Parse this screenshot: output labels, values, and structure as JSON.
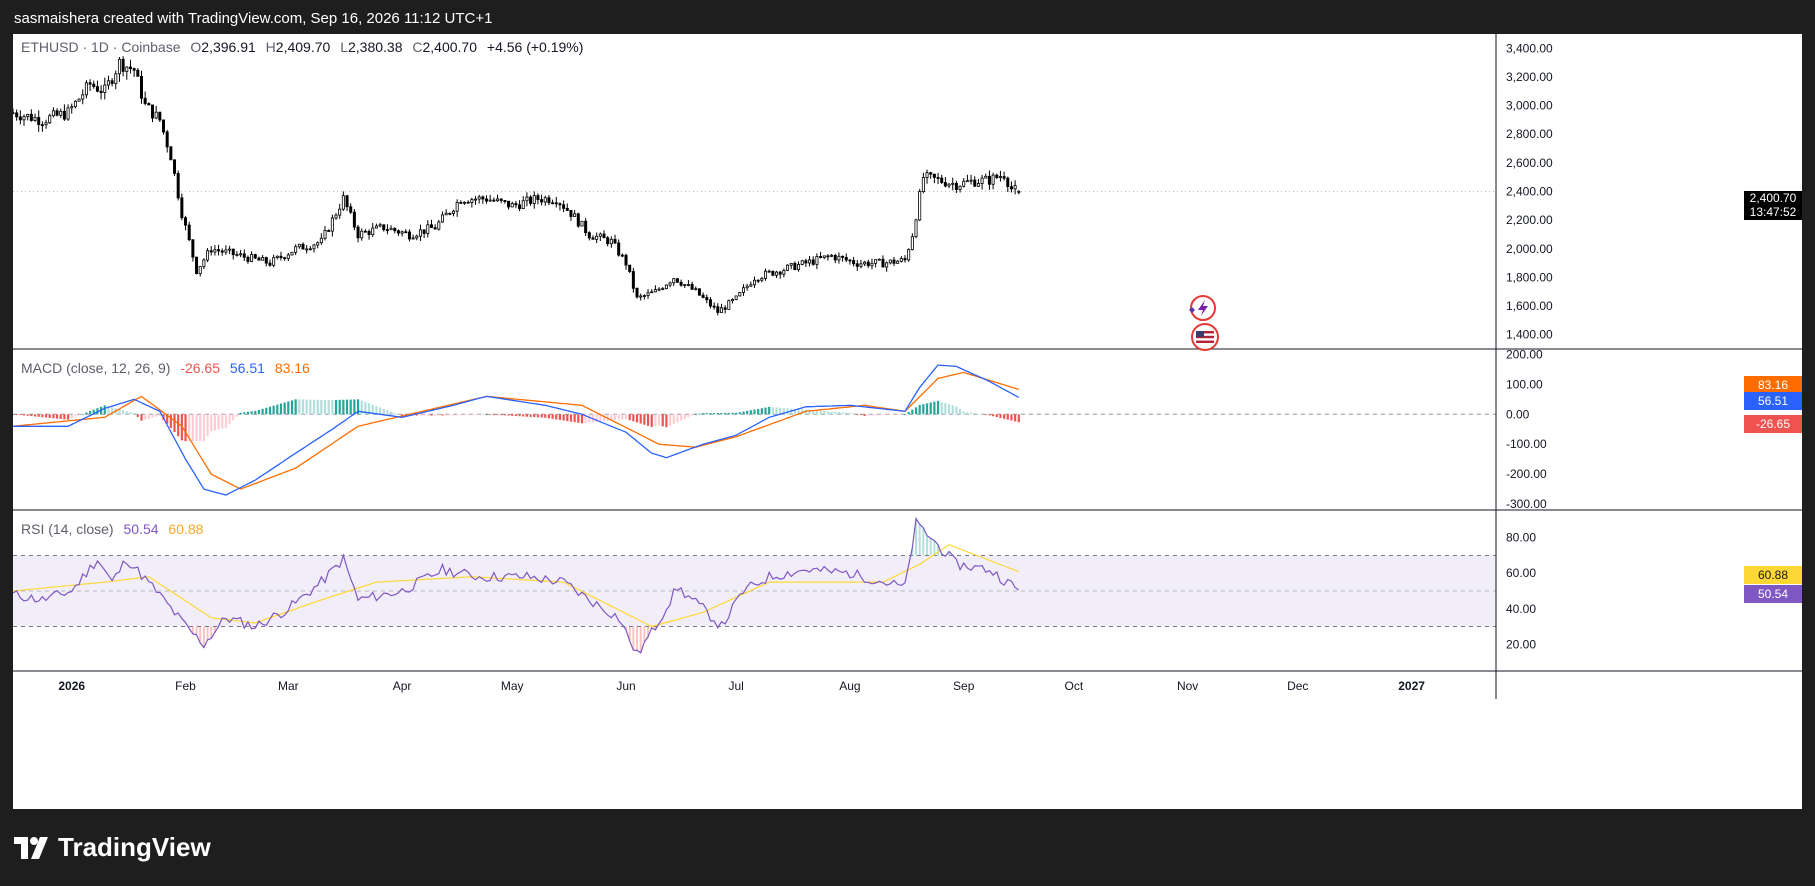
{
  "header": {
    "credit": "sasmaishera created with TradingView.com, Sep 16, 2026 11:12 UTC+1"
  },
  "footer": {
    "brand": "TradingView"
  },
  "legend": {
    "symbol": "ETHUSD · 1D · Coinbase",
    "o_label": "O",
    "o": "2,396.91",
    "h_label": "H",
    "h": "2,409.70",
    "l_label": "L",
    "l": "2,380.38",
    "c_label": "C",
    "c": "2,400.70",
    "change": "+4.56 (+0.19%)"
  },
  "macd": {
    "title": "MACD (close, 12, 26, 9)",
    "hist": "-26.65",
    "macd": "56.51",
    "signal": "83.16"
  },
  "rsi": {
    "title": "RSI (14, close)",
    "rsi": "50.54",
    "ma": "60.88"
  },
  "badges": {
    "price": "2,400.70",
    "countdown": "13:47:52",
    "macd_signal": "83.16",
    "macd_line": "56.51",
    "macd_hist": "-26.65",
    "rsi_ma": "60.88",
    "rsi_value": "50.54"
  },
  "colors": {
    "up": "#26a69a",
    "down": "#ef5350",
    "macd_line": "#2962ff",
    "signal_line": "#ff6d00",
    "rsi_line": "#7e57c2",
    "rsi_ma": "#fdd835",
    "candle": "#000000"
  },
  "icons": [
    "lightning-event-icon",
    "us-flag-icon",
    "tradingview-logo-icon"
  ],
  "chart_data": [
    {
      "type": "candlestick",
      "title": "ETHUSD · 1D · Coinbase",
      "y_ticks": [
        "3,400.00",
        "3,200.00",
        "3,000.00",
        "2,800.00",
        "2,600.00",
        "2,400.00",
        "2,200.00",
        "2,000.00",
        "1,800.00",
        "1,600.00",
        "1,400.00"
      ],
      "ylim": [
        1300,
        3500
      ],
      "x_ticks": [
        "2026",
        "Feb",
        "Mar",
        "Apr",
        "May",
        "Jun",
        "Jul",
        "Aug",
        "Sep",
        "Oct",
        "Nov",
        "Dec",
        "2027"
      ],
      "close_anchors": [
        [
          "2025-12-16",
          2950
        ],
        [
          "2025-12-24",
          2900
        ],
        [
          "2025-12-31",
          2950
        ],
        [
          "2026-01-06",
          3150
        ],
        [
          "2026-01-10",
          3100
        ],
        [
          "2026-01-14",
          3300
        ],
        [
          "2026-01-18",
          3250
        ],
        [
          "2026-01-21",
          3000
        ],
        [
          "2026-01-25",
          2900
        ],
        [
          "2026-01-28",
          2650
        ],
        [
          "2026-01-31",
          2250
        ],
        [
          "2026-02-04",
          1850
        ],
        [
          "2026-02-08",
          2000
        ],
        [
          "2026-02-16",
          1950
        ],
        [
          "2026-02-24",
          1900
        ],
        [
          "2026-03-03",
          2000
        ],
        [
          "2026-03-10",
          2050
        ],
        [
          "2026-03-16",
          2350
        ],
        [
          "2026-03-20",
          2100
        ],
        [
          "2026-03-27",
          2150
        ],
        [
          "2026-04-03",
          2100
        ],
        [
          "2026-04-10",
          2150
        ],
        [
          "2026-04-17",
          2350
        ],
        [
          "2026-04-24",
          2350
        ],
        [
          "2026-05-01",
          2300
        ],
        [
          "2026-05-08",
          2350
        ],
        [
          "2026-05-13",
          2350
        ],
        [
          "2026-05-17",
          2250
        ],
        [
          "2026-05-22",
          2100
        ],
        [
          "2026-05-28",
          2050
        ],
        [
          "2026-06-01",
          1900
        ],
        [
          "2026-06-04",
          1650
        ],
        [
          "2026-06-09",
          1700
        ],
        [
          "2026-06-14",
          1800
        ],
        [
          "2026-06-20",
          1700
        ],
        [
          "2026-06-26",
          1560
        ],
        [
          "2026-07-01",
          1650
        ],
        [
          "2026-07-06",
          1800
        ],
        [
          "2026-07-13",
          1850
        ],
        [
          "2026-07-20",
          1900
        ],
        [
          "2026-07-27",
          1950
        ],
        [
          "2026-08-03",
          1900
        ],
        [
          "2026-08-10",
          1900
        ],
        [
          "2026-08-16",
          1920
        ],
        [
          "2026-08-18",
          2100
        ],
        [
          "2026-08-21",
          2500
        ],
        [
          "2026-08-25",
          2480
        ],
        [
          "2026-08-30",
          2450
        ],
        [
          "2026-09-03",
          2470
        ],
        [
          "2026-09-08",
          2480
        ],
        [
          "2026-09-12",
          2520
        ],
        [
          "2026-09-14",
          2420
        ],
        [
          "2026-09-16",
          2400.7
        ]
      ],
      "last": {
        "open": 2396.91,
        "high": 2409.7,
        "low": 2380.38,
        "close": 2400.7
      }
    },
    {
      "type": "macd",
      "y_ticks": [
        "200.00",
        "100.00",
        "0.00",
        "-100.00",
        "-200.00",
        "-300.00"
      ],
      "ylim": [
        -320,
        215
      ],
      "macd_anchors": [
        [
          "2025-12-16",
          -40
        ],
        [
          "2025-12-31",
          -40
        ],
        [
          "2026-01-10",
          20
        ],
        [
          "2026-01-18",
          50
        ],
        [
          "2026-01-25",
          10
        ],
        [
          "2026-02-01",
          -150
        ],
        [
          "2026-02-06",
          -250
        ],
        [
          "2026-02-12",
          -270
        ],
        [
          "2026-02-20",
          -220
        ],
        [
          "2026-03-03",
          -130
        ],
        [
          "2026-03-13",
          -50
        ],
        [
          "2026-03-20",
          10
        ],
        [
          "2026-04-01",
          -10
        ],
        [
          "2026-04-15",
          30
        ],
        [
          "2026-04-24",
          60
        ],
        [
          "2026-05-10",
          30
        ],
        [
          "2026-05-20",
          0
        ],
        [
          "2026-06-01",
          -60
        ],
        [
          "2026-06-08",
          -130
        ],
        [
          "2026-06-12",
          -145
        ],
        [
          "2026-06-22",
          -100
        ],
        [
          "2026-07-01",
          -70
        ],
        [
          "2026-07-10",
          -10
        ],
        [
          "2026-07-20",
          25
        ],
        [
          "2026-08-01",
          30
        ],
        [
          "2026-08-16",
          10
        ],
        [
          "2026-08-20",
          90
        ],
        [
          "2026-08-25",
          165
        ],
        [
          "2026-08-30",
          160
        ],
        [
          "2026-09-08",
          110
        ],
        [
          "2026-09-16",
          56.51
        ]
      ],
      "signal_anchors": [
        [
          "2025-12-16",
          -40
        ],
        [
          "2026-01-10",
          -10
        ],
        [
          "2026-01-20",
          60
        ],
        [
          "2026-01-31",
          -40
        ],
        [
          "2026-02-08",
          -200
        ],
        [
          "2026-02-16",
          -250
        ],
        [
          "2026-03-03",
          -180
        ],
        [
          "2026-03-20",
          -40
        ],
        [
          "2026-04-03",
          0
        ],
        [
          "2026-04-24",
          60
        ],
        [
          "2026-05-20",
          30
        ],
        [
          "2026-06-10",
          -100
        ],
        [
          "2026-06-20",
          -110
        ],
        [
          "2026-07-01",
          -75
        ],
        [
          "2026-07-20",
          10
        ],
        [
          "2026-08-05",
          30
        ],
        [
          "2026-08-16",
          10
        ],
        [
          "2026-08-25",
          120
        ],
        [
          "2026-09-01",
          140
        ],
        [
          "2026-09-16",
          83.16
        ]
      ],
      "last": {
        "hist": -26.65,
        "macd": 56.51,
        "signal": 83.16
      }
    },
    {
      "type": "rsi",
      "y_ticks": [
        "80.00",
        "60.00",
        "40.00",
        "20.00"
      ],
      "ylim": [
        5,
        95
      ],
      "band": [
        30,
        70
      ],
      "rsi_anchors": [
        [
          "2025-12-16",
          48
        ],
        [
          "2025-12-24",
          45
        ],
        [
          "2026-01-01",
          50
        ],
        [
          "2026-01-08",
          68
        ],
        [
          "2026-01-12",
          55
        ],
        [
          "2026-01-16",
          68
        ],
        [
          "2026-01-24",
          50
        ],
        [
          "2026-02-02",
          28
        ],
        [
          "2026-02-06",
          20
        ],
        [
          "2026-02-12",
          35
        ],
        [
          "2026-02-20",
          30
        ],
        [
          "2026-03-01",
          40
        ],
        [
          "2026-03-10",
          55
        ],
        [
          "2026-03-16",
          68
        ],
        [
          "2026-03-20",
          45
        ],
        [
          "2026-04-01",
          50
        ],
        [
          "2026-04-12",
          62
        ],
        [
          "2026-04-22",
          58
        ],
        [
          "2026-05-05",
          58
        ],
        [
          "2026-05-15",
          55
        ],
        [
          "2026-05-22",
          45
        ],
        [
          "2026-05-30",
          35
        ],
        [
          "2026-06-04",
          14
        ],
        [
          "2026-06-09",
          30
        ],
        [
          "2026-06-15",
          52
        ],
        [
          "2026-06-22",
          40
        ],
        [
          "2026-06-27",
          30
        ],
        [
          "2026-07-03",
          50
        ],
        [
          "2026-07-10",
          58
        ],
        [
          "2026-07-20",
          62
        ],
        [
          "2026-08-01",
          60
        ],
        [
          "2026-08-16",
          52
        ],
        [
          "2026-08-19",
          88
        ],
        [
          "2026-08-23",
          80
        ],
        [
          "2026-08-30",
          65
        ],
        [
          "2026-09-08",
          62
        ],
        [
          "2026-09-16",
          50.54
        ]
      ],
      "ma_anchors": [
        [
          "2025-12-16",
          50
        ],
        [
          "2026-01-10",
          55
        ],
        [
          "2026-01-22",
          58
        ],
        [
          "2026-02-08",
          35
        ],
        [
          "2026-02-20",
          32
        ],
        [
          "2026-03-10",
          45
        ],
        [
          "2026-03-25",
          55
        ],
        [
          "2026-04-20",
          58
        ],
        [
          "2026-05-15",
          55
        ],
        [
          "2026-06-08",
          30
        ],
        [
          "2026-06-22",
          38
        ],
        [
          "2026-07-10",
          55
        ],
        [
          "2026-08-10",
          55
        ],
        [
          "2026-08-20",
          65
        ],
        [
          "2026-08-28",
          76
        ],
        [
          "2026-09-16",
          60.88
        ]
      ],
      "last": {
        "rsi": 50.54,
        "ma": 60.88
      }
    }
  ]
}
